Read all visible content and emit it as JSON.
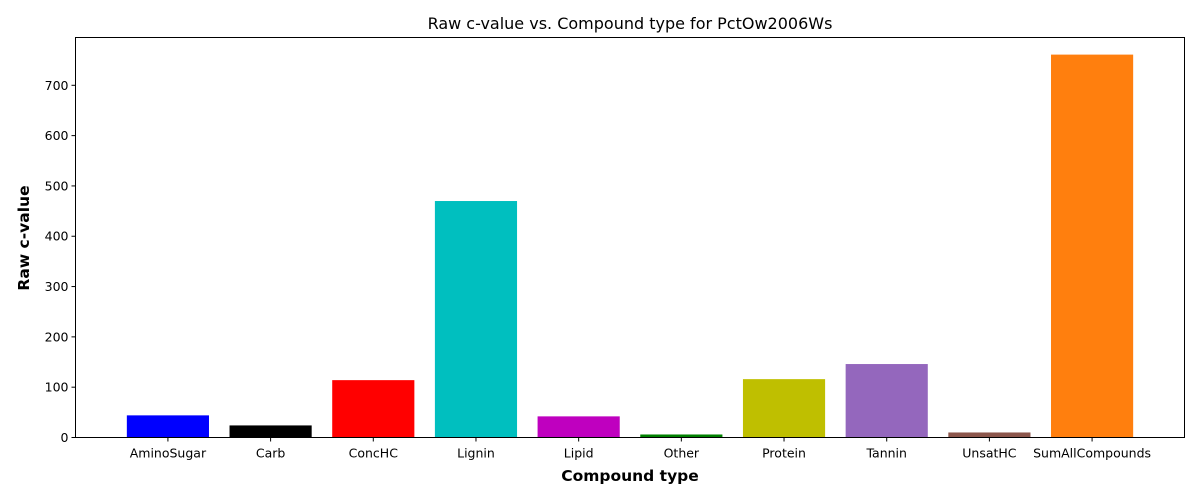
{
  "chart_data": {
    "type": "bar",
    "title": "Raw c-value vs. Compound type for PctOw2006Ws",
    "xlabel": "Compound type",
    "ylabel": "Raw c-value",
    "ylim": [
      0,
      795
    ],
    "yticks": [
      0,
      100,
      200,
      300,
      400,
      500,
      600,
      700
    ],
    "grid": false,
    "legend": "none",
    "categories": [
      "AminoSugar",
      "Carb",
      "ConcHC",
      "Lignin",
      "Lipid",
      "Other",
      "Protein",
      "Tannin",
      "UnsatHC",
      "SumAllCompounds"
    ],
    "values": [
      44,
      24,
      114,
      470,
      42,
      6,
      116,
      146,
      10,
      761
    ],
    "colors": [
      "#0000ff",
      "#000000",
      "#ff0000",
      "#00bfbf",
      "#bf00bf",
      "#008000",
      "#bfbf00",
      "#9467bd",
      "#8c564b",
      "#ff7f0e"
    ]
  }
}
